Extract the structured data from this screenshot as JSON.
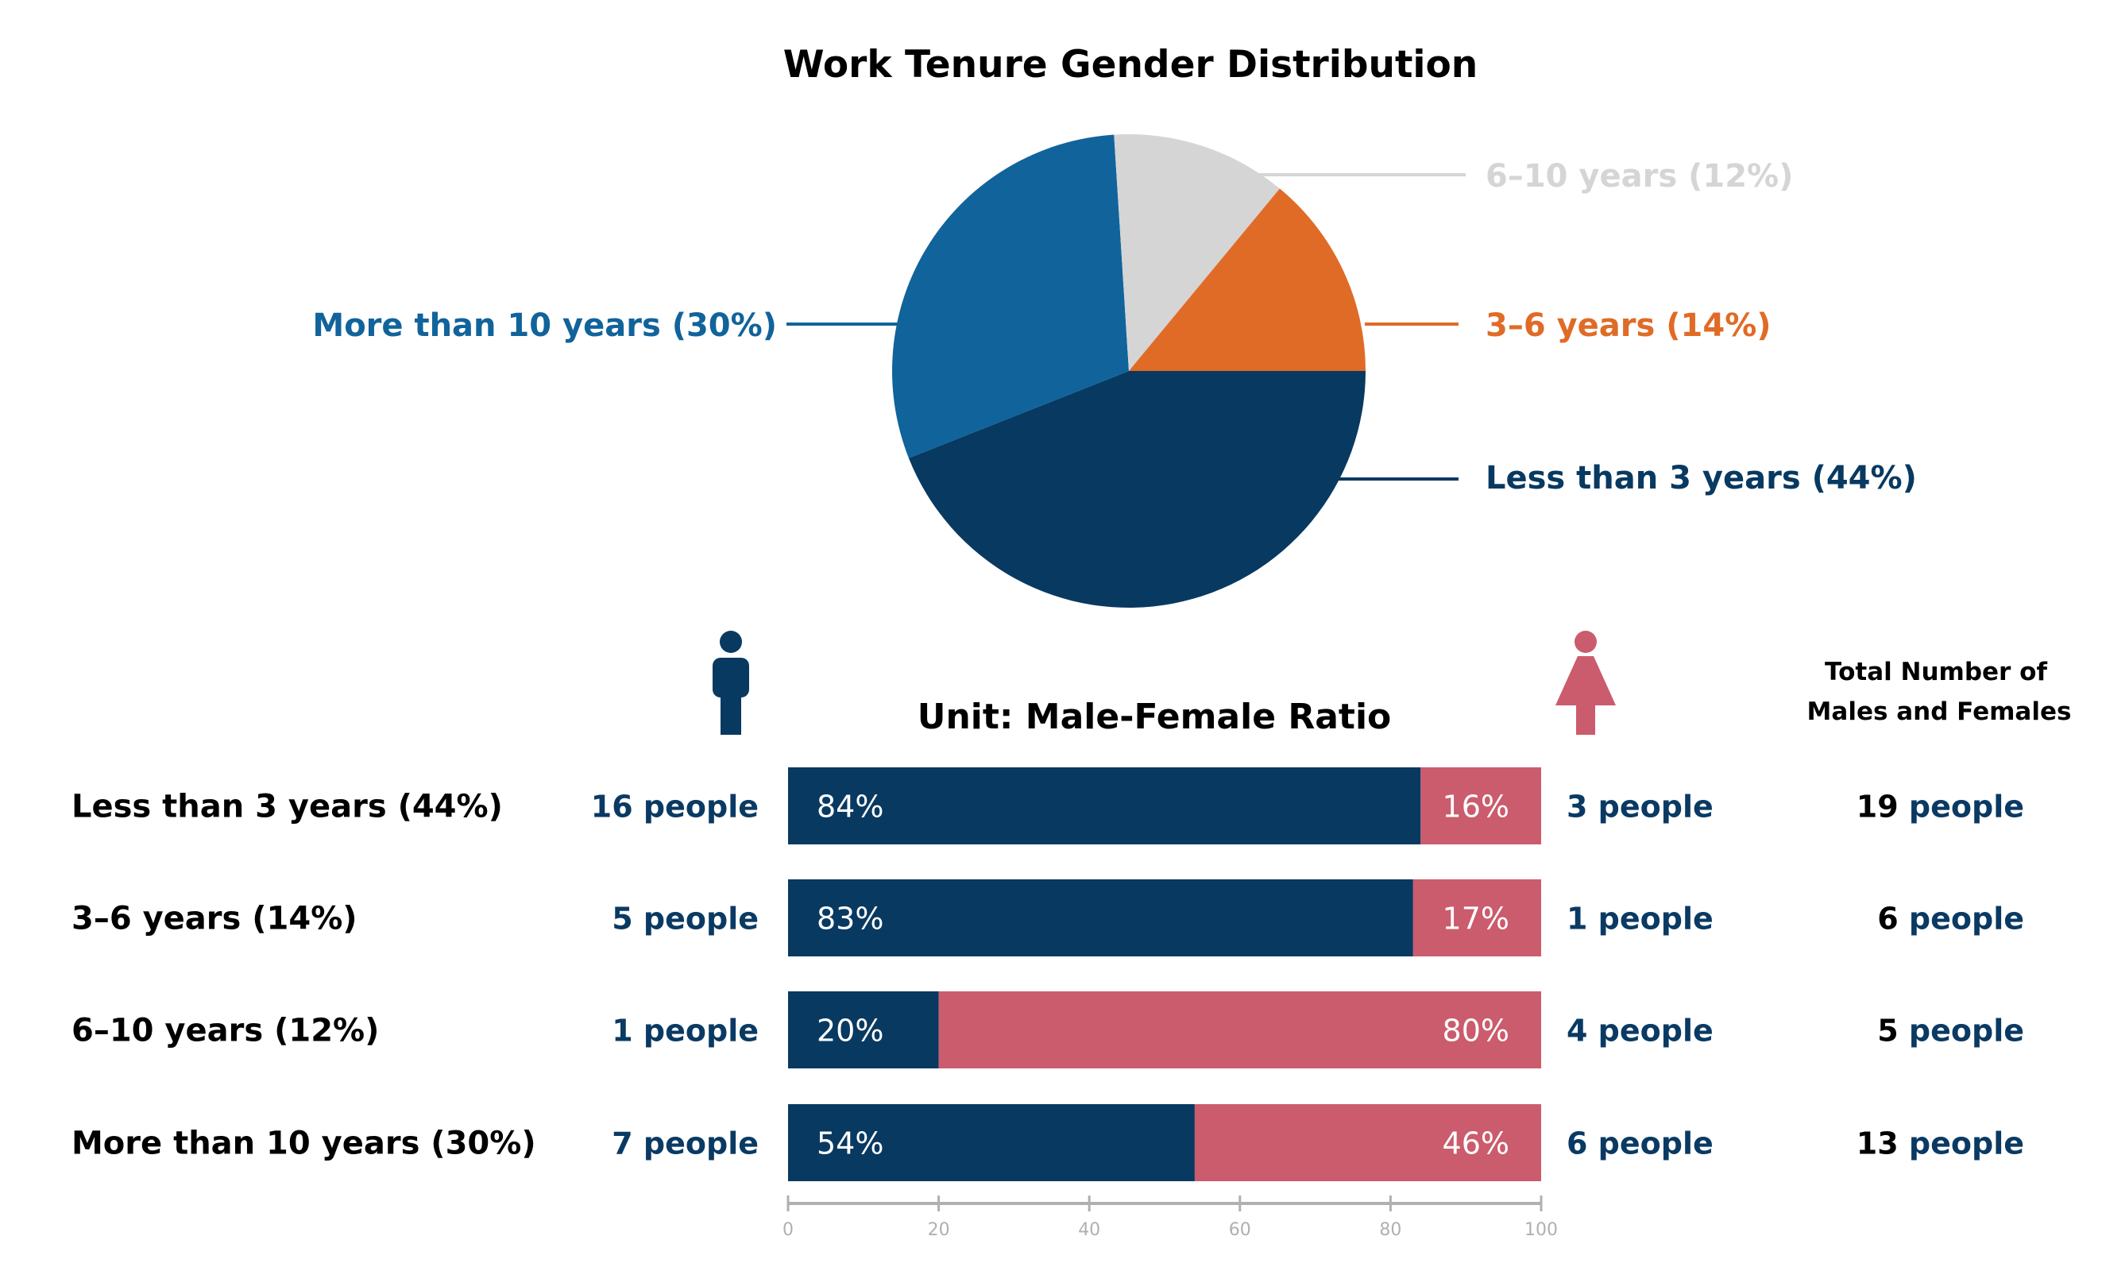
{
  "title": "Work Tenure Gender Distribution",
  "subtitle": "Unit: Male-Female Ratio",
  "total_header": [
    "Total Number of",
    "Males and Females"
  ],
  "colors": {
    "male": "#083961",
    "female": "#cb5c6d",
    "less3": "#083961",
    "y3to6": "#e06b26",
    "y6to10": "#d5d5d5",
    "more10": "#11639b",
    "axis": "#b0b0b0",
    "text_dark": "#000000",
    "text_blue": "#0a3a63"
  },
  "icons": {
    "male": "male-person-icon",
    "female": "female-person-icon"
  },
  "chart_data": [
    {
      "type": "pie",
      "title": "Work Tenure Gender Distribution",
      "slices": [
        {
          "label": "Less than 3 years (44%)",
          "value": 44,
          "color": "#083961"
        },
        {
          "label": "More than 10 years (30%)",
          "value": 30,
          "color": "#11639b"
        },
        {
          "label": "6–10 years (12%)",
          "value": 12,
          "color": "#d5d5d5"
        },
        {
          "label": "3–6 years (14%)",
          "value": 14,
          "color": "#e06b26"
        }
      ]
    },
    {
      "type": "bar",
      "orientation": "horizontal",
      "stacked": true,
      "title": "Unit: Male-Female Ratio",
      "categories": [
        "Less than 3 years (44%)",
        "3–6 years (14%)",
        "6–10 years (12%)",
        "More than 10 years (30%)"
      ],
      "series": [
        {
          "values": [
            84,
            83,
            20,
            54
          ],
          "labels": [
            "84%",
            "83%",
            "20%",
            "54%"
          ]
        },
        {
          "values": [
            16,
            17,
            80,
            46
          ],
          "labels": [
            "16%",
            "17%",
            "80%",
            "46%"
          ]
        }
      ],
      "male_counts": [
        "16 people",
        "5 people",
        "1 people",
        "7 people"
      ],
      "female_counts": [
        "3 people",
        "1 people",
        "4 people",
        "6 people"
      ],
      "totals": [
        {
          "num": "19",
          "unit": "people"
        },
        {
          "num": "6",
          "unit": "people"
        },
        {
          "num": "5",
          "unit": "people"
        },
        {
          "num": "13",
          "unit": "people"
        }
      ],
      "xlim": [
        0,
        100
      ],
      "xticks": [
        "0",
        "20",
        "40",
        "60",
        "80",
        "100"
      ]
    }
  ]
}
